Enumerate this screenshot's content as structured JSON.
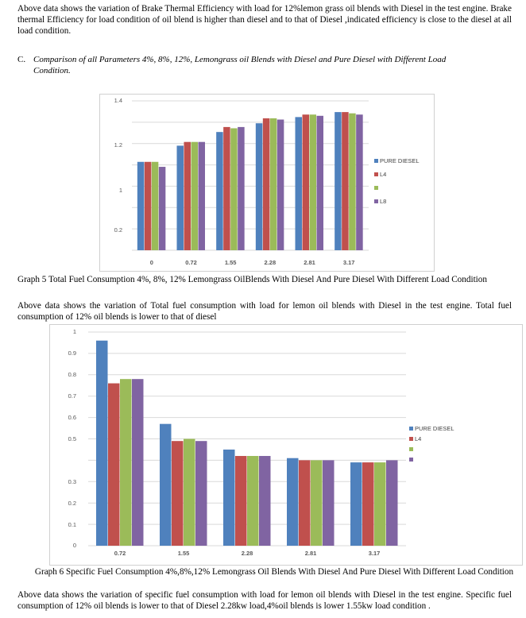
{
  "paragraphs": {
    "p1": "Above data shows the variation of Brake Thermal Efficiency with load for 12%lemon grass oil blends with Diesel in the test engine. Brake thermal Efficiency for load condition of oil blend is higher than diesel and to that of Diesel ,indicated efficiency is close to the diesel at all load condition.",
    "p2": "Above data shows the variation of Total fuel consumption with load for lemon oil blends with Diesel in the test engine. Total fuel consumption of 12% oil blends is lower to that of diesel",
    "p3": "Above data shows the variation of specific fuel consumption with load for lemon oil blends with Diesel in the test engine. Specific fuel consumption of 12% oil blends is lower to that of Diesel 2.28kw load,4%oil blends is lower 1.55kw load condition ."
  },
  "section": {
    "number": "C.",
    "line1": "Comparison of all Parameters 4%, 8%, 12%, Lemongrass oil Blends with Diesel and Pure Diesel with Different Load",
    "line2": "Condition."
  },
  "captions": {
    "graph5": "Graph 5 Total Fuel Consumption 4%, 8%, 12% Lemongrass OilBlends With Diesel And Pure Diesel With Different Load Condition",
    "graph6": "Graph 6 Specific Fuel Consumption 4%,8%,12% Lemongrass Oil Blends With Diesel And Pure Diesel With Different Load Condition"
  },
  "colors": {
    "pure_diesel": "#4f81bd",
    "l4": "#c0504d",
    "l8_green": "#9bbb59",
    "l12_purple": "#8064a2"
  },
  "chart_data": [
    {
      "type": "bar",
      "categories": [
        "0",
        "0.72",
        "1.55",
        "2.28",
        "2.81",
        "3.17"
      ],
      "y_tick_labels": [
        "0.2",
        "1",
        "1.2",
        "1.4"
      ],
      "grid": true,
      "legend_position": "right",
      "series": [
        {
          "name": "PURE DIESEL",
          "values": [
            0.91,
            1.04,
            1.15,
            1.22,
            1.27,
            1.31
          ]
        },
        {
          "name": "L4",
          "values": [
            0.91,
            1.07,
            1.19,
            1.26,
            1.29,
            1.31
          ]
        },
        {
          "name": "",
          "values": [
            0.91,
            1.07,
            1.18,
            1.26,
            1.29,
            1.3
          ]
        },
        {
          "name": "L8",
          "values": [
            0.87,
            1.07,
            1.19,
            1.25,
            1.28,
            1.29
          ]
        }
      ],
      "ylim": [
        0.2,
        1.4
      ]
    },
    {
      "type": "bar",
      "categories": [
        "0.72",
        "1.55",
        "2.28",
        "2.81",
        "3.17"
      ],
      "y_tick_labels": [
        "0",
        "0.1",
        "0.2",
        "0.3",
        "0.5",
        "0.6",
        "0.7",
        "0.8",
        "0.9",
        "1"
      ],
      "grid": true,
      "legend_position": "right",
      "series": [
        {
          "name": "PURE DIESEL",
          "values": [
            0.96,
            0.57,
            0.45,
            0.41,
            0.39
          ]
        },
        {
          "name": "L4",
          "values": [
            0.76,
            0.49,
            0.42,
            0.4,
            0.39
          ]
        },
        {
          "name": "",
          "values": [
            0.78,
            0.5,
            0.42,
            0.4,
            0.39
          ]
        },
        {
          "name": "",
          "values": [
            0.78,
            0.49,
            0.42,
            0.4,
            0.4
          ]
        }
      ],
      "ylim": [
        0,
        1
      ]
    }
  ]
}
